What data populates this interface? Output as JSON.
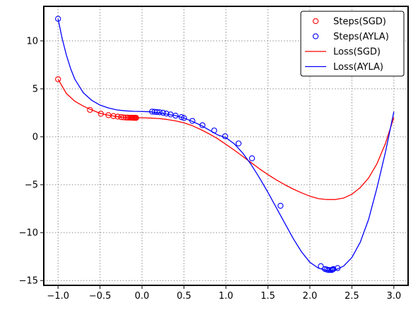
{
  "chart_data": {
    "type": "line",
    "x_ticks": [
      -1.0,
      -0.5,
      0.0,
      0.5,
      1.0,
      1.5,
      2.0,
      2.5,
      3.0
    ],
    "x_tick_labels": [
      "−1.0",
      "−0.5",
      "0.0",
      "0.5",
      "1.0",
      "1.5",
      "2.0",
      "2.5",
      "3.0"
    ],
    "y_ticks": [
      -15,
      -10,
      -5,
      0,
      5,
      10
    ],
    "y_tick_labels": [
      "−15",
      "−10",
      "−5",
      "0",
      "5",
      "10"
    ],
    "xlim": [
      -1.17,
      3.17
    ],
    "ylim": [
      -15.5,
      13.6
    ],
    "grid": true,
    "grid_style": "dotted",
    "legend_position": "top-right",
    "series": [
      {
        "name": "Loss(SGD)",
        "kind": "line",
        "color": "#ff0000",
        "x": [
          -1.0,
          -0.9,
          -0.8,
          -0.7,
          -0.6,
          -0.5,
          -0.4,
          -0.3,
          -0.2,
          -0.1,
          0.0,
          0.1,
          0.2,
          0.3,
          0.4,
          0.5,
          0.6,
          0.7,
          0.8,
          0.9,
          1.0,
          1.1,
          1.2,
          1.3,
          1.4,
          1.5,
          1.6,
          1.7,
          1.8,
          1.9,
          2.0,
          2.1,
          2.2,
          2.3,
          2.4,
          2.5,
          2.6,
          2.7,
          2.8,
          2.9,
          3.0
        ],
        "y": [
          6.0,
          4.5,
          3.7,
          3.2,
          2.8,
          2.45,
          2.25,
          2.1,
          2.0,
          1.98,
          1.97,
          1.95,
          1.9,
          1.8,
          1.65,
          1.45,
          1.15,
          0.75,
          0.3,
          -0.2,
          -0.8,
          -1.4,
          -2.05,
          -2.7,
          -3.35,
          -3.95,
          -4.5,
          -5.0,
          -5.45,
          -5.85,
          -6.2,
          -6.45,
          -6.55,
          -6.55,
          -6.4,
          -6.0,
          -5.3,
          -4.3,
          -2.8,
          -0.7,
          2.0
        ]
      },
      {
        "name": "Loss(AYLA)",
        "kind": "line",
        "color": "#0000ff",
        "x": [
          -1.0,
          -0.95,
          -0.9,
          -0.85,
          -0.8,
          -0.7,
          -0.6,
          -0.5,
          -0.4,
          -0.3,
          -0.2,
          -0.1,
          0.0,
          0.1,
          0.2,
          0.3,
          0.4,
          0.5,
          0.6,
          0.7,
          0.8,
          0.9,
          1.0,
          1.1,
          1.2,
          1.3,
          1.4,
          1.5,
          1.6,
          1.7,
          1.8,
          1.9,
          2.0,
          2.1,
          2.2,
          2.25,
          2.3,
          2.4,
          2.5,
          2.6,
          2.7,
          2.8,
          2.9,
          3.0
        ],
        "y": [
          12.3,
          10.2,
          8.5,
          7.1,
          6.0,
          4.6,
          3.8,
          3.3,
          3.0,
          2.8,
          2.7,
          2.65,
          2.63,
          2.6,
          2.5,
          2.35,
          2.2,
          1.95,
          1.6,
          1.2,
          0.7,
          0.2,
          -0.1,
          -0.75,
          -1.7,
          -2.9,
          -4.3,
          -5.8,
          -7.4,
          -9.0,
          -10.6,
          -12.0,
          -13.1,
          -13.7,
          -13.95,
          -13.95,
          -13.9,
          -13.5,
          -12.6,
          -11.0,
          -8.6,
          -5.3,
          -1.6,
          2.6
        ]
      },
      {
        "name": "Steps(SGD)",
        "kind": "scatter",
        "color": "#ff0000",
        "x": [
          -1.0,
          -0.62,
          -0.49,
          -0.4,
          -0.34,
          -0.29,
          -0.25,
          -0.22,
          -0.19,
          -0.17,
          -0.15,
          -0.13,
          -0.12,
          -0.11,
          -0.1,
          -0.09,
          -0.08,
          -0.07
        ],
        "y": [
          6.0,
          2.8,
          2.4,
          2.25,
          2.15,
          2.1,
          2.05,
          2.02,
          2.0,
          2.0,
          1.99,
          1.99,
          1.98,
          1.98,
          1.98,
          1.98,
          1.97,
          1.97
        ]
      },
      {
        "name": "Steps(AYLA)",
        "kind": "scatter",
        "color": "#0000ff",
        "x": [
          -1.0,
          0.12,
          0.15,
          0.18,
          0.21,
          0.25,
          0.29,
          0.34,
          0.4,
          0.47,
          0.5,
          0.6,
          0.72,
          0.86,
          0.99,
          1.15,
          1.31,
          1.65,
          2.13,
          2.18,
          2.2,
          2.22,
          2.24,
          2.26,
          2.27,
          2.28,
          2.33
        ],
        "y": [
          12.3,
          2.62,
          2.6,
          2.58,
          2.55,
          2.5,
          2.42,
          2.33,
          2.2,
          2.05,
          1.95,
          1.65,
          1.2,
          0.65,
          0.05,
          -0.7,
          -2.25,
          -7.2,
          -13.5,
          -13.8,
          -13.85,
          -13.9,
          -13.9,
          -13.9,
          -13.85,
          -13.8,
          -13.7
        ]
      }
    ],
    "legend": [
      {
        "label": "Steps(SGD)",
        "kind": "marker",
        "color": "#ff0000"
      },
      {
        "label": "Steps(AYLA)",
        "kind": "marker",
        "color": "#0000ff"
      },
      {
        "label": "Loss(SGD)",
        "kind": "line",
        "color": "#ff0000"
      },
      {
        "label": "Loss(AYLA)",
        "kind": "line",
        "color": "#0000ff"
      }
    ]
  }
}
